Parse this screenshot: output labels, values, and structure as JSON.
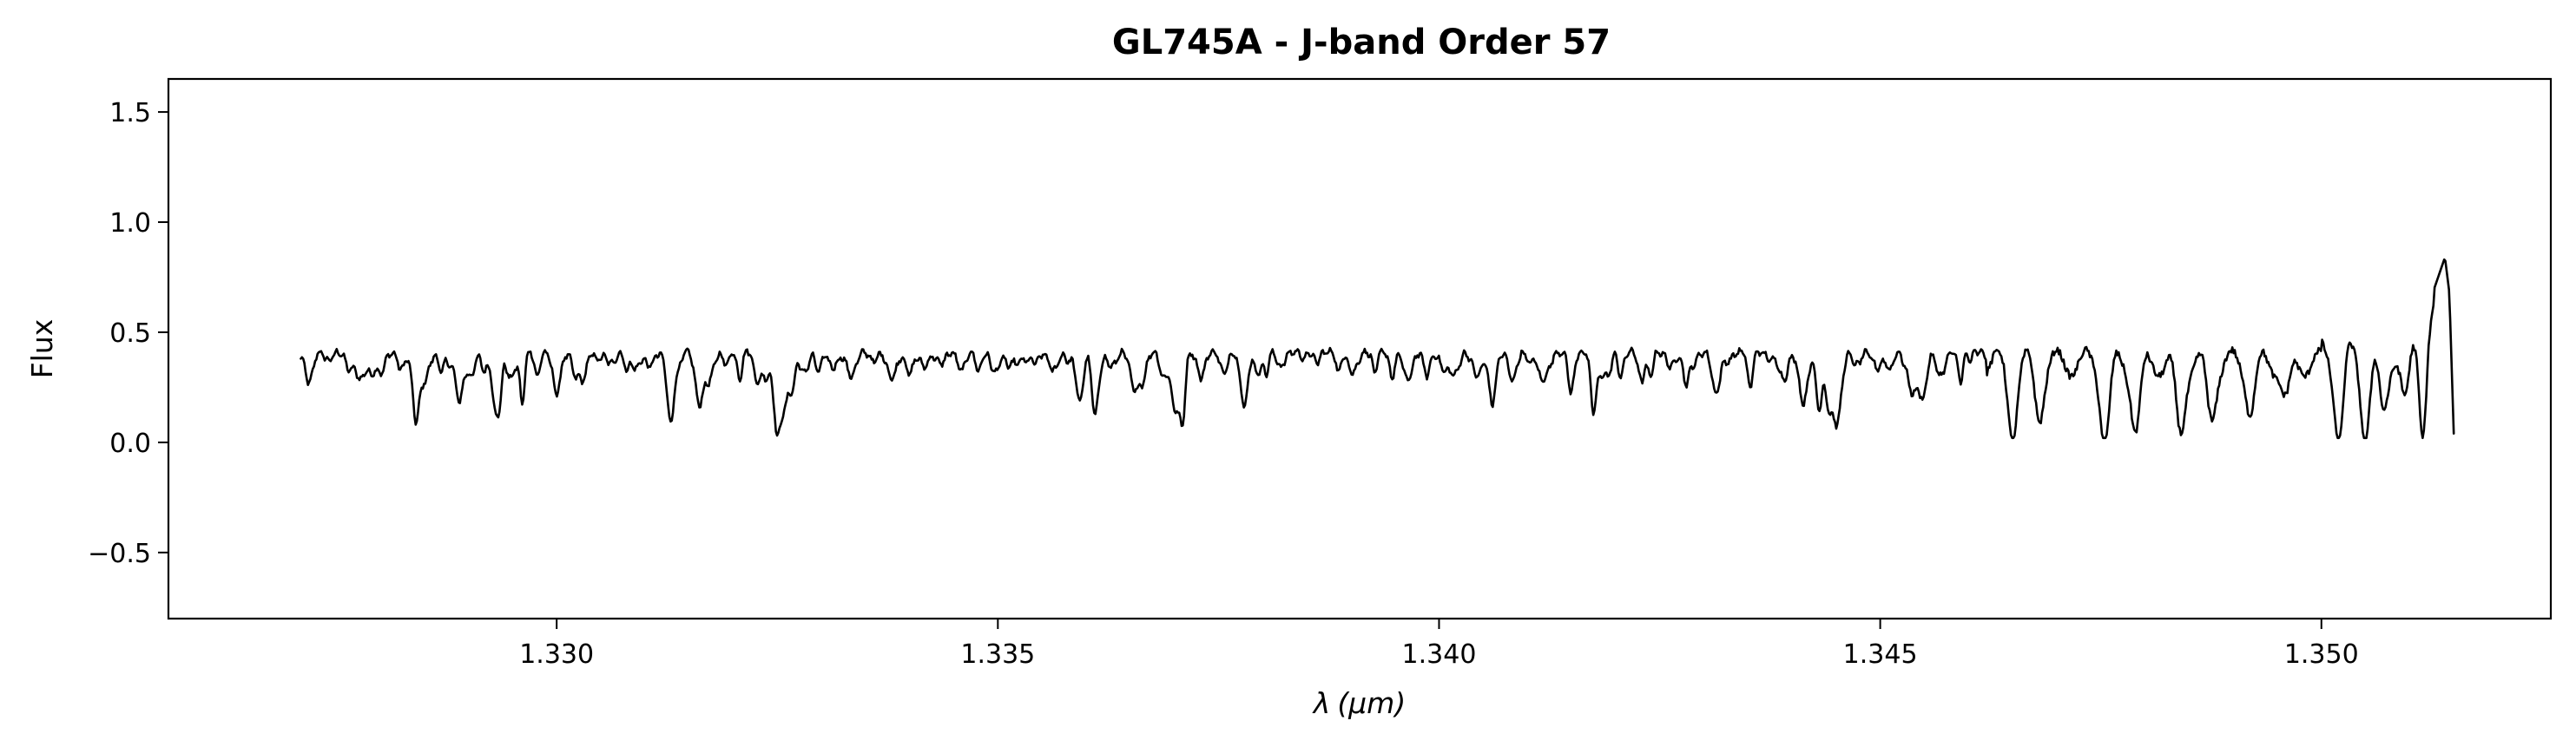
{
  "chart_data": {
    "type": "line",
    "title": "GL745A - J-band Order 57",
    "xlabel_symbol": "λ",
    "xlabel_unit": "(μm)",
    "ylabel": "Flux",
    "xlim": [
      1.3256,
      1.3526
    ],
    "ylim": [
      -0.8,
      1.65
    ],
    "x_ticks": [
      1.33,
      1.335,
      1.34,
      1.345,
      1.35
    ],
    "x_tick_labels": [
      "1.330",
      "1.335",
      "1.340",
      "1.345",
      "1.350"
    ],
    "y_ticks": [
      -0.5,
      0.0,
      0.5,
      1.0,
      1.5
    ],
    "y_tick_labels": [
      "−0.5",
      "0.0",
      "0.5",
      "1.0",
      "1.5"
    ],
    "grid": false,
    "series": [
      {
        "line_color": "#000000",
        "x_range": [
          1.3271,
          1.3515
        ],
        "continuum": 0.41,
        "approx_points": [
          [
            1.3271,
            0.38
          ],
          [
            1.3272,
            0.31
          ],
          [
            1.3273,
            0.41
          ],
          [
            1.3278,
            0.41
          ],
          [
            1.3279,
            0.32
          ],
          [
            1.3283,
            0.41
          ],
          [
            1.3284,
            0.2
          ],
          [
            1.3286,
            0.41
          ],
          [
            1.3288,
            0.4
          ],
          [
            1.3289,
            0.2
          ],
          [
            1.3292,
            0.41
          ],
          [
            1.3293,
            0.18
          ],
          [
            1.33,
            0.3
          ],
          [
            1.3302,
            0.41
          ],
          [
            1.3313,
            0.15
          ],
          [
            1.3325,
            0.15
          ],
          [
            1.3338,
            0.4
          ],
          [
            1.3345,
            0.4
          ],
          [
            1.335,
            0.4
          ],
          [
            1.3356,
            0.4
          ],
          [
            1.336,
            0.2
          ],
          [
            1.3361,
            0.14
          ],
          [
            1.337,
            0.41
          ],
          [
            1.3378,
            0.16
          ],
          [
            1.339,
            0.4
          ],
          [
            1.34,
            0.41
          ],
          [
            1.3406,
            0.18
          ],
          [
            1.342,
            0.4
          ],
          [
            1.344,
            0.39
          ],
          [
            1.3455,
            0.41
          ],
          [
            1.3465,
            0.1
          ],
          [
            1.347,
            0.35
          ],
          [
            1.3476,
            0.03
          ],
          [
            1.3477,
            0.27
          ],
          [
            1.348,
            0.04
          ],
          [
            1.3484,
            0.05
          ],
          [
            1.349,
            0.45
          ],
          [
            1.3502,
            0.04
          ],
          [
            1.3505,
            0.05
          ],
          [
            1.3508,
            0.5
          ],
          [
            1.351,
            0.66
          ],
          [
            1.3511,
            0.68
          ],
          [
            1.3512,
            0.1
          ],
          [
            1.3513,
            0.7
          ],
          [
            1.35135,
            0.84
          ],
          [
            1.3514,
            0.66
          ],
          [
            1.3515,
            0.04
          ]
        ]
      }
    ]
  }
}
